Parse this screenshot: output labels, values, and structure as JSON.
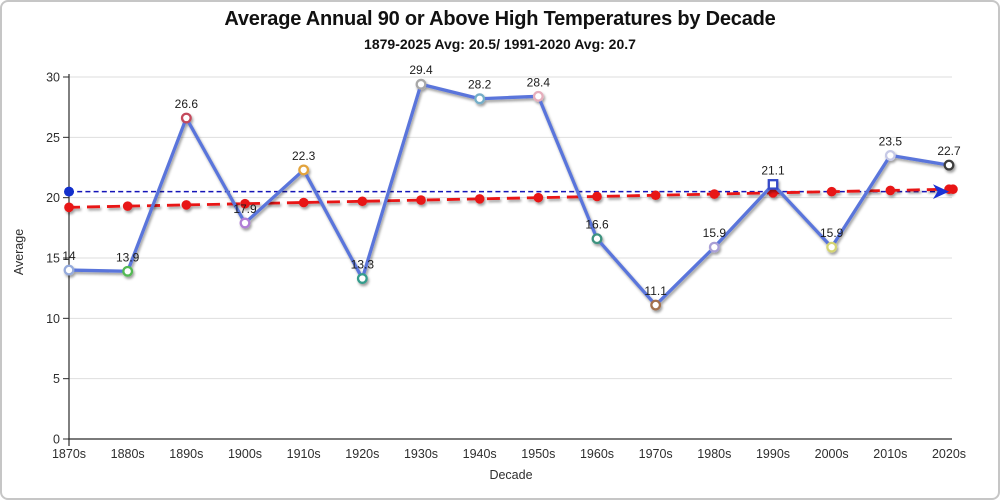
{
  "title": "Average Annual 90 or Above High Temperatures by Decade",
  "subtitle": "1879-2025 Avg: 20.5/ 1991-2020 Avg: 20.7",
  "chart_data": {
    "type": "line",
    "title": "Average Annual 90 or Above High Temperatures by Decade",
    "subtitle": "1879-2025 Avg: 20.5/ 1991-2020 Avg: 20.7",
    "xlabel": "Decade",
    "ylabel": "Average",
    "ylim": [
      0,
      30
    ],
    "yticks": [
      0,
      5,
      10,
      15,
      20,
      25,
      30
    ],
    "grid": "horizontal",
    "categories": [
      "1870s",
      "1880s",
      "1890s",
      "1900s",
      "1910s",
      "1920s",
      "1930s",
      "1940s",
      "1950s",
      "1960s",
      "1970s",
      "1980s",
      "1990s",
      "2000s",
      "2010s",
      "2020s"
    ],
    "series_color": "#5A75DB",
    "points": [
      {
        "decade": "1870s",
        "value": 14,
        "label": "14",
        "marker_color": "#96ABDC",
        "marker": "circle"
      },
      {
        "decade": "1880s",
        "value": 13.9,
        "label": "13.9",
        "marker_color": "#53B953",
        "marker": "circle"
      },
      {
        "decade": "1890s",
        "value": 26.6,
        "label": "26.6",
        "marker_color": "#C4485C",
        "marker": "circle"
      },
      {
        "decade": "1900s",
        "value": 17.9,
        "label": "17.9",
        "marker_color": "#B07FD6",
        "marker": "circle"
      },
      {
        "decade": "1910s",
        "value": 22.3,
        "label": "22.3",
        "marker_color": "#E2A33C",
        "marker": "circle"
      },
      {
        "decade": "1920s",
        "value": 13.3,
        "label": "13.3",
        "marker_color": "#359C8C",
        "marker": "circle"
      },
      {
        "decade": "1930s",
        "value": 29.4,
        "label": "29.4",
        "marker_color": "#A8A8A8",
        "marker": "circle"
      },
      {
        "decade": "1940s",
        "value": 28.2,
        "label": "28.2",
        "marker_color": "#74AEC8",
        "marker": "circle"
      },
      {
        "decade": "1950s",
        "value": 28.4,
        "label": "28.4",
        "marker_color": "#E6AEBC",
        "marker": "circle"
      },
      {
        "decade": "1960s",
        "value": 16.6,
        "label": "16.6",
        "marker_color": "#3E927E",
        "marker": "circle"
      },
      {
        "decade": "1970s",
        "value": 11.1,
        "label": "11.1",
        "marker_color": "#A3714E",
        "marker": "circle"
      },
      {
        "decade": "1980s",
        "value": 15.9,
        "label": "15.9",
        "marker_color": "#A99FD6",
        "marker": "circle"
      },
      {
        "decade": "1990s",
        "value": 21.1,
        "label": "21.1",
        "marker_color": "#3448C8",
        "marker": "square"
      },
      {
        "decade": "2000s",
        "value": 15.9,
        "label": "15.9",
        "marker_color": "#D4D473",
        "marker": "circle"
      },
      {
        "decade": "2010s",
        "value": 23.5,
        "label": "23.5",
        "marker_color": "#C6C9E6",
        "marker": "circle"
      },
      {
        "decade": "2020s",
        "value": 22.7,
        "label": "22.7",
        "marker_color": "#3C3C3C",
        "marker": "circle"
      }
    ],
    "trend_line": {
      "name": "trend line",
      "color": "#E81414",
      "style": "dashed",
      "values": [
        19.2,
        19.3,
        19.4,
        19.5,
        19.6,
        19.7,
        19.8,
        19.9,
        20.0,
        20.1,
        20.2,
        20.3,
        20.4,
        20.5,
        20.6,
        20.7
      ],
      "end_value": 20.7
    },
    "average_line": {
      "name": "1879-2025 average",
      "value": 20.5,
      "color": "#1414B8",
      "style": "dashed",
      "start_dot_color": "#1330CC",
      "arrow_color": "#1B33D6"
    }
  }
}
